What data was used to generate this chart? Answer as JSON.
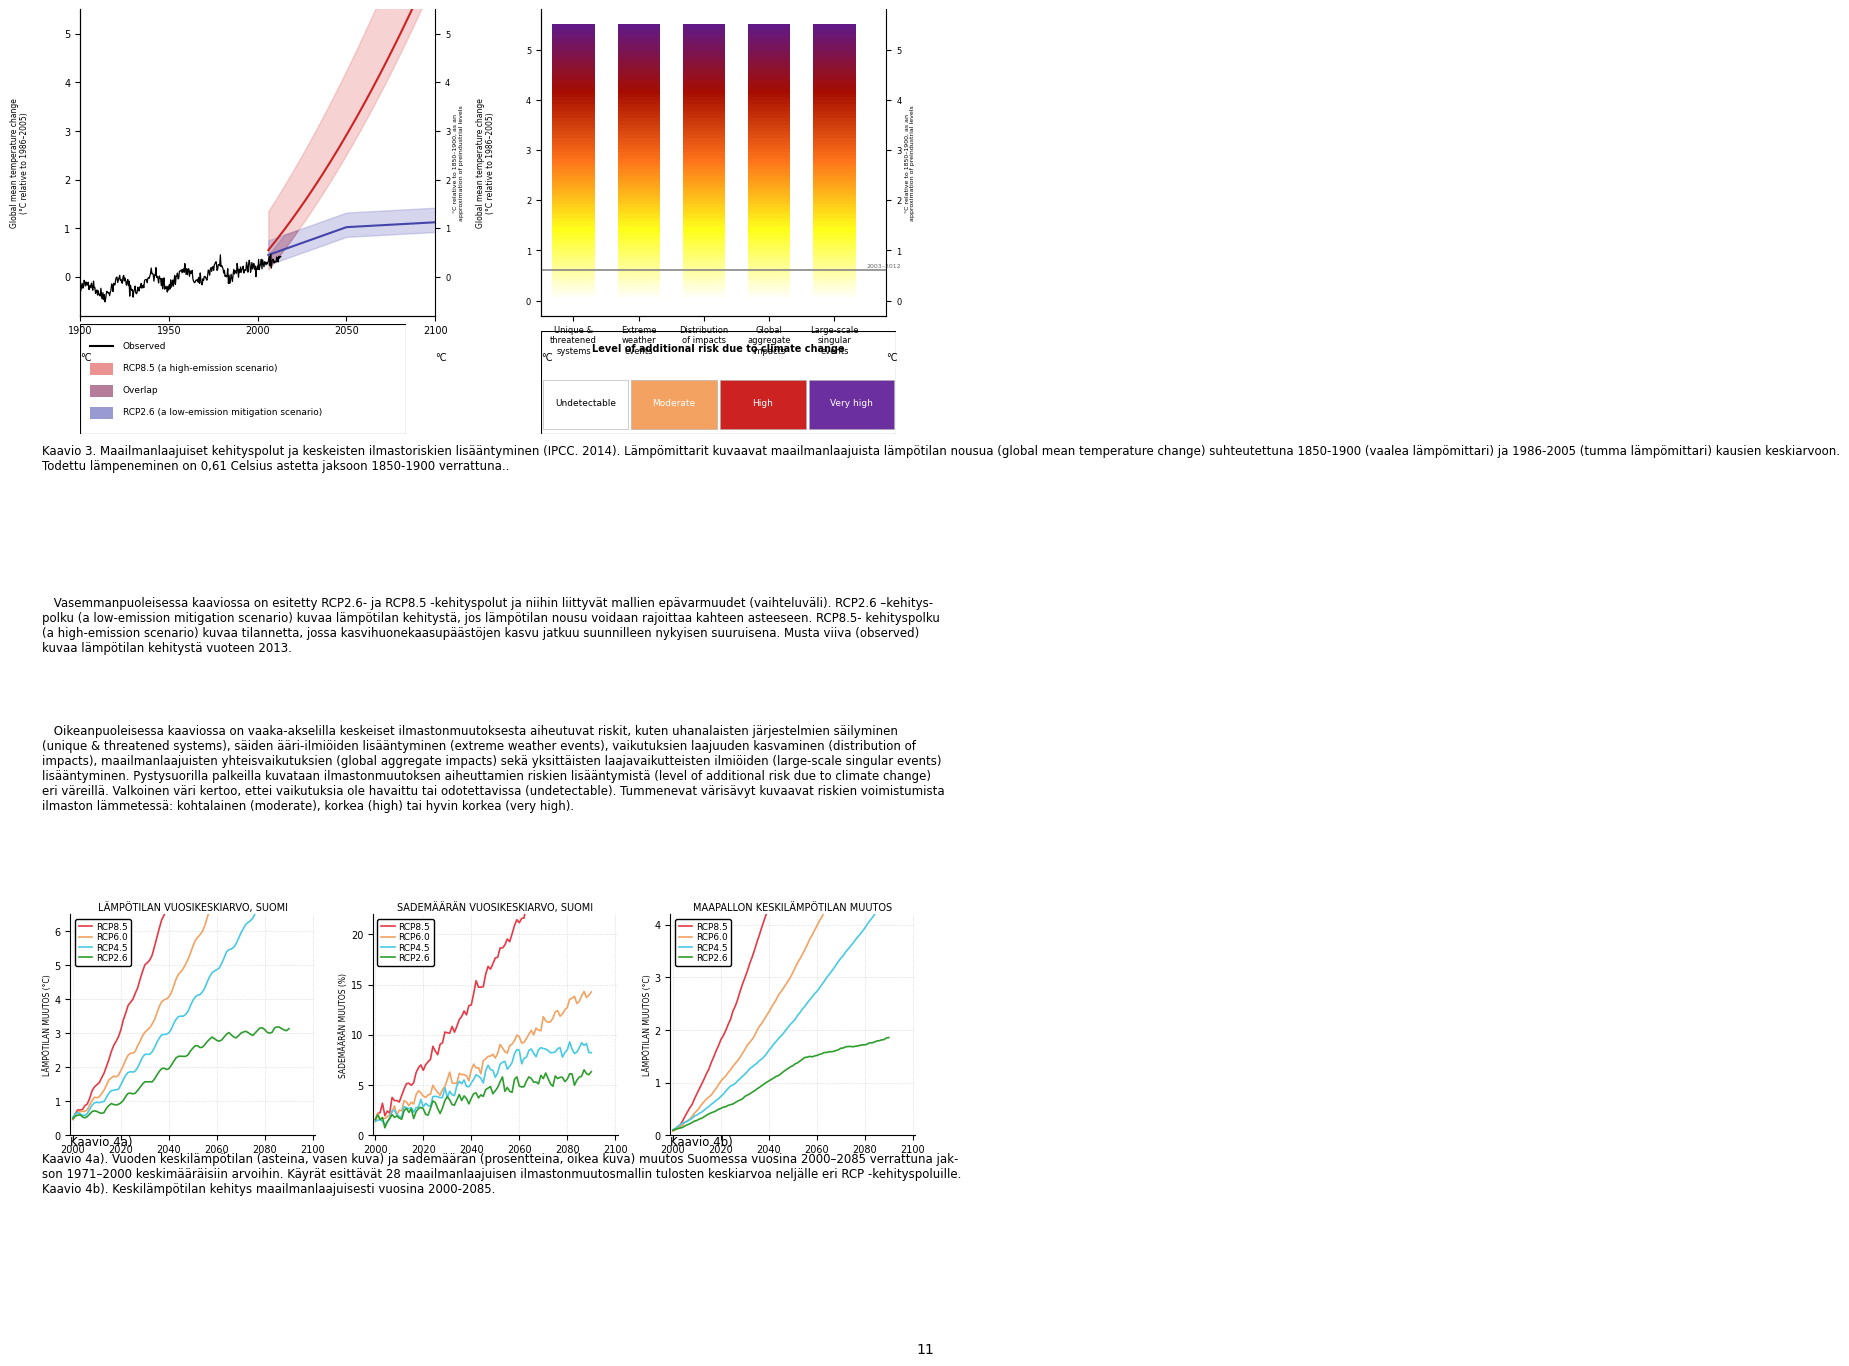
{
  "background_color": "#ffffff",
  "page_number": "11",
  "kaavio3_left_ylabel": "Global mean temperature change\n(°C relative to 1986–2005)",
  "kaavio3_right_ylabel": "°C relative to 1850–1900, as an\napproximation of preindustrial levels",
  "legend_items": [
    "Observed",
    "RCP8.5 (a high-emission scenario)",
    "Overlap",
    "RCP2.6 (a low-emission mitigation scenario)"
  ],
  "risk_categories": [
    "Unique &\nthreatened\nsystems",
    "Extreme\nweather\nevents",
    "Distribution\nof impacts",
    "Global\naggregate\nimpacts",
    "Large-scale\nsingular\nevents"
  ],
  "risk_legend_title": "Level of additional risk due to climate change",
  "risk_levels": [
    "Undetectable",
    "Moderate",
    "High",
    "Very high"
  ],
  "risk_level_colors": [
    "#ffffff",
    "#f4a261",
    "#cc2222",
    "#6b2fa0"
  ],
  "kaavio4_titles": [
    "LÄMPÖTILAN VUOSIKESKIARVO, SUOMI",
    "SADEМÄÄRÄN VUOSIKESKIARVO, SUOMI",
    "MAAPALLON KESKILÄMPÖTILAN MUUTOS"
  ],
  "kaavio4a_label": "Kaavio 4a)",
  "kaavio4b_label": "Kaavio 4b)",
  "rcp_colors": [
    "#e63946",
    "#f4a261",
    "#48cae4",
    "#2d9e2d"
  ],
  "rcp_labels": [
    "RCP8.5",
    "RCP6.0",
    "RCP4.5",
    "RCP2.6"
  ],
  "chart1_ylim": [
    0,
    6.5
  ],
  "chart1_yticks": [
    0,
    1,
    2,
    3,
    4,
    5,
    6
  ],
  "chart1_ylabel": "LÄMPÖTILAN MUUTOS (°C)",
  "chart2_ylim": [
    0,
    22
  ],
  "chart2_yticks": [
    0,
    5,
    10,
    15,
    20
  ],
  "chart2_ylabel": "SADEMÄÄRÄN MUUTOS (%)",
  "chart3_ylim": [
    0,
    4.2
  ],
  "chart3_yticks": [
    0,
    1,
    2,
    3,
    4
  ],
  "chart3_ylabel": "LÄMPÖTILAN MUUTOS (°C)",
  "caption3_line1": "Kaavio 3. Maailmanlaajuiset kehityspolut ja keskeisten ilmastoriskien lisääntyminen (IPCC. 2014). Lämpömittarit kuvaavat maailmanlaajuista lämpötilan nousua (global mean temperature change) suhteutettuna 1850-1900 (vaalea lämpömittari) ja 1986-2005 (tumma lämpömittari) kausien keskiarvoon.",
  "caption3_line2": "Todettu lämpeneminen on 0,61 Celsius astetta jaksoon 1850-1900 verrattuna..",
  "body1": " Vasemmanpuoleisessa kaaviossa on esitetty RCP2.6- ja RCP8.5 -kehityspolut ja niihin liittyvät mallien epävarmuudet (vaihteluväli). RCP2.6 –kehityspolku (a low-emission mitigation scenario) kuvaa lämpötilan kehitystä, jos lämpötilan nousu voidaan rajoittaa kahteen asteeseen. RCP8.5- kehityspolku (a high-emission scenario) kuvaa tilannetta, jossa kasvihuonekaasupäästöjen kasvu jatkuu suunnilleen nykyisen suuruisena. Musta viiva (observed) kuvaa lämpötilan kehitystä vuoteen 2013.",
  "body2": " Oikeanpuoleisessa kaaviossa on vaaka-akselilla keskeiset ilmastonmuutoksesta aiheutuvat riskit, kuten uhanalaisten järjestelmien säilyminen (unique & threatened systems), säiden ääri-ilmiöiden lisääntyminen (extreme weather events), vaikutuksien laajuuden kasvaminen (distribution of impacts), maailmanlaajuisten yhteisvaikutuksien (global aggregate impacts) sekä yksittäisten laajavaikutteisten ilmiöiden (large-scale singular events) lisääntyminen. Pystysuorilla palkeilla kuvataan ilmastonmuutoksen aiheuttamien riskien lisääntymistä (level of additional risk due to climate change) eri väreillä. Valkoinen väri kertoo, ettei vaikutuksia ole havaittu tai odotettavissa (undetectable). Tummenevat värisävyt kuvaavat riskien voimistumista ilmaston lämmetessä: kohtalainen (moderate), korkea (high) tai hyvin korkea (very high).",
  "caption4a": "Kaavio 4a). Vuoden keskilämpötilan (asteina, vasen kuva) ja sademäärän (prosentteina, oikea kuva) muutos Suomessa vuosina 2000–2085 verrattuna jak-son 1971–2000 keskimääräisiin arvoihin. Käyrät esittävät 28 maailmanlaajuisen ilmastonmuutosmallin tulosten keskiarvoa neljälle eri RCP -kehityspoluille.",
  "caption4b": "Kaavio 4b). Keskilämpötilan kehitys maailmanlaajuisesti vuosina 2000-2085."
}
